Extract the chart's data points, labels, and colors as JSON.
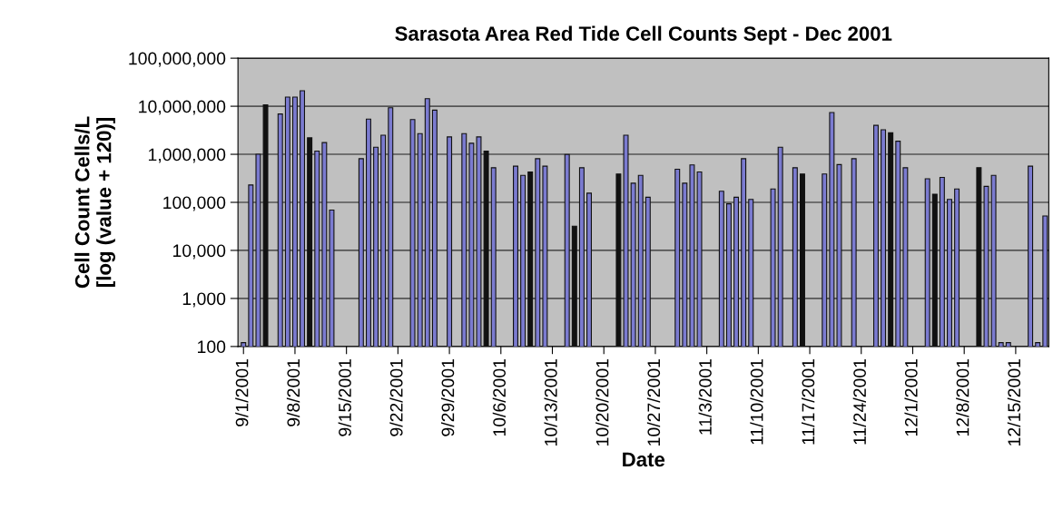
{
  "chart_data": {
    "type": "bar",
    "title": "Sarasota Area Red Tide Cell Counts Sept - Dec 2001",
    "xlabel": "Date",
    "ylabel": "Cell Count Cells/L\n[log (value + 120)]",
    "x": [
      "2001-09-01",
      "2001-09-02",
      "2001-09-03",
      "2001-09-04",
      "2001-09-06",
      "2001-09-07",
      "2001-09-08",
      "2001-09-09",
      "2001-09-10",
      "2001-09-11",
      "2001-09-12",
      "2001-09-13",
      "2001-09-17",
      "2001-09-18",
      "2001-09-19",
      "2001-09-20",
      "2001-09-21",
      "2001-09-24",
      "2001-09-25",
      "2001-09-26",
      "2001-09-27",
      "2001-09-29",
      "2001-10-01",
      "2001-10-02",
      "2001-10-03",
      "2001-10-04",
      "2001-10-05",
      "2001-10-08",
      "2001-10-09",
      "2001-10-10",
      "2001-10-11",
      "2001-10-12",
      "2001-10-15",
      "2001-10-16",
      "2001-10-17",
      "2001-10-18",
      "2001-10-22",
      "2001-10-23",
      "2001-10-24",
      "2001-10-25",
      "2001-10-26",
      "2001-10-30",
      "2001-10-31",
      "2001-11-01",
      "2001-11-02",
      "2001-11-05",
      "2001-11-06",
      "2001-11-07",
      "2001-11-08",
      "2001-11-09",
      "2001-11-12",
      "2001-11-13",
      "2001-11-15",
      "2001-11-16",
      "2001-11-19",
      "2001-11-20",
      "2001-11-21",
      "2001-11-23",
      "2001-11-26",
      "2001-11-27",
      "2001-11-28",
      "2001-11-29",
      "2001-11-30",
      "2001-12-03",
      "2001-12-04",
      "2001-12-05",
      "2001-12-06",
      "2001-12-07",
      "2001-12-10",
      "2001-12-11",
      "2001-12-12",
      "2001-12-13",
      "2001-12-14",
      "2001-12-17",
      "2001-12-18",
      "2001-12-19"
    ],
    "values": [
      120,
      230000,
      1000000,
      10700000,
      6900000,
      15500000,
      15500000,
      21000000,
      2200000,
      1170000,
      1750000,
      69000,
      810000,
      5400000,
      1400000,
      2500000,
      9300000,
      5300000,
      2700000,
      14400000,
      8300000,
      2300000,
      2700000,
      1700000,
      2300000,
      1170000,
      525000,
      565000,
      365000,
      430000,
      810000,
      565000,
      990000,
      32000,
      525000,
      155000,
      390000,
      2500000,
      250000,
      365000,
      128000,
      490000,
      250000,
      600000,
      430000,
      170000,
      93000,
      128000,
      810000,
      115000,
      190000,
      1400000,
      525000,
      390000,
      390000,
      7400000,
      610000,
      810000,
      4000000,
      3250000,
      2800000,
      1870000,
      525000,
      310000,
      148000,
      330000,
      115000,
      190000,
      525000,
      215000,
      365000,
      120,
      120,
      565000,
      120,
      52000
    ],
    "colors": [
      "#7b7bd0",
      "#7b7bd0",
      "#7b7bd0",
      "#111111",
      "#7b7bd0",
      "#7b7bd0",
      "#7b7bd0",
      "#7b7bd0",
      "#111111",
      "#7b7bd0",
      "#7b7bd0",
      "#7b7bd0",
      "#7b7bd0",
      "#7b7bd0",
      "#7b7bd0",
      "#7b7bd0",
      "#7b7bd0",
      "#7b7bd0",
      "#7b7bd0",
      "#7b7bd0",
      "#7b7bd0",
      "#7b7bd0",
      "#7b7bd0",
      "#7b7bd0",
      "#7b7bd0",
      "#111111",
      "#7b7bd0",
      "#7b7bd0",
      "#7b7bd0",
      "#111111",
      "#7b7bd0",
      "#7b7bd0",
      "#7b7bd0",
      "#111111",
      "#7b7bd0",
      "#7b7bd0",
      "#111111",
      "#7b7bd0",
      "#7b7bd0",
      "#7b7bd0",
      "#7b7bd0",
      "#7b7bd0",
      "#7b7bd0",
      "#7b7bd0",
      "#7b7bd0",
      "#7b7bd0",
      "#7b7bd0",
      "#7b7bd0",
      "#7b7bd0",
      "#7b7bd0",
      "#7b7bd0",
      "#7b7bd0",
      "#7b7bd0",
      "#111111",
      "#7b7bd0",
      "#7b7bd0",
      "#7b7bd0",
      "#7b7bd0",
      "#7b7bd0",
      "#7b7bd0",
      "#111111",
      "#7b7bd0",
      "#7b7bd0",
      "#7b7bd0",
      "#111111",
      "#7b7bd0",
      "#7b7bd0",
      "#7b7bd0",
      "#111111",
      "#7b7bd0",
      "#7b7bd0",
      "#7b7bd0",
      "#7b7bd0",
      "#7b7bd0",
      "#7b7bd0",
      "#7b7bd0"
    ],
    "log": true,
    "ylim": [
      100,
      100000000
    ],
    "yticks": [
      {
        "value": 100,
        "label": "100"
      },
      {
        "value": 1000,
        "label": "1,000"
      },
      {
        "value": 10000,
        "label": "10,000"
      },
      {
        "value": 100000,
        "label": "100,000"
      },
      {
        "value": 1000000,
        "label": "1,000,000"
      },
      {
        "value": 10000000,
        "label": "10,000,000"
      },
      {
        "value": 100000000,
        "label": "100,000,000"
      }
    ],
    "xlim": [
      "2001-08-31T06:00",
      "2001-12-19T12:00"
    ],
    "xticks": [
      {
        "value": "2001-09-01",
        "label": "9/1/2001"
      },
      {
        "value": "2001-09-08",
        "label": "9/8/2001"
      },
      {
        "value": "2001-09-15",
        "label": "9/15/2001"
      },
      {
        "value": "2001-09-22",
        "label": "9/22/2001"
      },
      {
        "value": "2001-09-29",
        "label": "9/29/2001"
      },
      {
        "value": "2001-10-06",
        "label": "10/6/2001"
      },
      {
        "value": "2001-10-13",
        "label": "10/13/2001"
      },
      {
        "value": "2001-10-20",
        "label": "10/20/2001"
      },
      {
        "value": "2001-10-27",
        "label": "10/27/2001"
      },
      {
        "value": "2001-11-03",
        "label": "11/3/2001"
      },
      {
        "value": "2001-11-10",
        "label": "11/10/2001"
      },
      {
        "value": "2001-11-17",
        "label": "11/17/2001"
      },
      {
        "value": "2001-11-24",
        "label": "11/24/2001"
      },
      {
        "value": "2001-12-01",
        "label": "12/1/2001"
      },
      {
        "value": "2001-12-08",
        "label": "12/8/2001"
      },
      {
        "value": "2001-12-15",
        "label": "12/15/2001"
      }
    ],
    "grid": "y",
    "legend": false
  }
}
